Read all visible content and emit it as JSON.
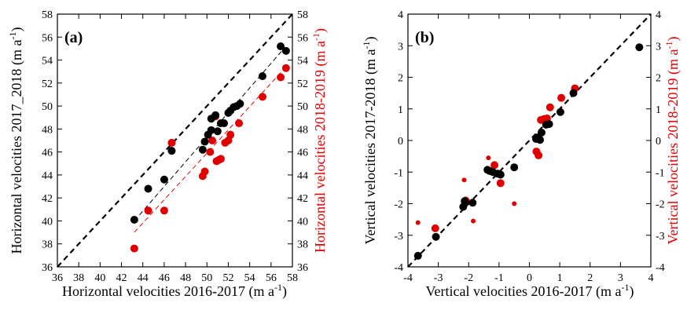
{
  "chart_data": [
    {
      "type": "scatter",
      "panel_label": "(a)",
      "xlabel": "Horizontal velocities 2016-2017 (m a",
      "xlabel_sup": "-1",
      "xlabel_tail": ")",
      "ylabel": "Horizontal velocities 2017_2018 (m a",
      "ylabel_sup": "-1",
      "ylabel_tail": ")",
      "ylabel_right": "Horizontal velocities 2018-2019 (m a",
      "ylabel_right_sup": "-1",
      "ylabel_right_tail": ")",
      "xlim": [
        36,
        58
      ],
      "ylim": [
        36,
        58
      ],
      "xticks": [
        "36",
        "38",
        "40",
        "42",
        "44",
        "46",
        "48",
        "50",
        "52",
        "54",
        "56",
        "58"
      ],
      "yticks": [
        "36",
        "38",
        "40",
        "42",
        "44",
        "46",
        "48",
        "50",
        "52",
        "54",
        "56",
        "58"
      ],
      "colors": {
        "series_2017_2018": "#000000",
        "series_2018_2019": "#e00000",
        "identity": "#000000"
      },
      "identity_line": [
        [
          36,
          36
        ],
        [
          58,
          58
        ]
      ],
      "fit_lines": [
        {
          "color": "#000000",
          "points": [
            [
              43.2,
              40.0
            ],
            [
              57.2,
              55.0
            ]
          ]
        },
        {
          "color": "#e00000",
          "points": [
            [
              43.2,
              39.0
            ],
            [
              57.2,
              53.2
            ]
          ]
        }
      ],
      "series": [
        {
          "color": "#000000",
          "x": [
            43.2,
            44.5,
            46.0,
            46.7,
            49.6,
            49.8,
            50.1,
            50.4,
            50.4,
            50.8,
            51.0,
            51.3,
            51.6,
            52.0,
            52.2,
            52.5,
            52.8,
            53.1,
            55.2,
            56.9,
            57.4
          ],
          "y": [
            40.1,
            42.8,
            43.6,
            46.1,
            46.2,
            46.9,
            47.5,
            47.9,
            48.9,
            49.2,
            47.8,
            48.5,
            48.5,
            49.4,
            49.6,
            49.9,
            50.0,
            50.2,
            52.6,
            55.2,
            54.8
          ]
        },
        {
          "color": "#e00000",
          "x": [
            43.2,
            44.5,
            46.0,
            46.7,
            49.6,
            49.8,
            50.3,
            50.5,
            50.8,
            50.9,
            51.1,
            51.3,
            51.7,
            52.0,
            52.2,
            53.0,
            55.2,
            56.9,
            57.4
          ],
          "y": [
            37.6,
            40.9,
            40.9,
            46.8,
            43.9,
            44.3,
            46.0,
            47.0,
            49.1,
            45.2,
            45.3,
            45.4,
            46.8,
            47.0,
            47.5,
            48.5,
            50.8,
            52.5,
            53.3
          ]
        }
      ]
    },
    {
      "type": "scatter",
      "panel_label": "(b)",
      "xlabel": "Vertical velocities 2016-2017 (m a",
      "xlabel_sup": "-1",
      "xlabel_tail": ")",
      "ylabel": "Vertical velocities 2017-2018 (m a",
      "ylabel_sup": "-1",
      "ylabel_tail": ")",
      "ylabel_right": "Vertical velocities 2018-2019 (m a",
      "ylabel_right_sup": "-1",
      "ylabel_right_tail": ")",
      "xlim": [
        -4,
        4
      ],
      "ylim": [
        -4,
        4
      ],
      "xticks": [
        "-4",
        "-3",
        "-2",
        "-1",
        "0",
        "1",
        "2",
        "3",
        "4"
      ],
      "yticks": [
        "-4",
        "-3",
        "-2",
        "-1",
        "0",
        "1",
        "2",
        "3",
        "4"
      ],
      "colors": {
        "series_2017_2018": "#000000",
        "series_2018_2019": "#e00000",
        "identity": "#000000"
      },
      "identity_line": [
        [
          -4,
          -4
        ],
        [
          4,
          4
        ]
      ],
      "series": [
        {
          "color": "#000000",
          "x": [
            -3.67,
            -3.08,
            -2.18,
            -2.13,
            -1.87,
            -1.38,
            -1.3,
            -1.2,
            -1.05,
            -0.95,
            -0.5,
            0.22,
            0.28,
            0.35,
            0.4,
            0.55,
            0.65,
            1.02,
            1.45,
            3.62
          ],
          "y": [
            -3.65,
            -3.05,
            -2.1,
            -1.92,
            -1.97,
            -0.93,
            -0.97,
            -1.0,
            -1.05,
            -1.08,
            -0.85,
            0.05,
            0.1,
            0.02,
            0.25,
            0.5,
            0.52,
            0.9,
            1.5,
            2.95
          ],
          "r": [
            5,
            5,
            5,
            5,
            5,
            5,
            5,
            5,
            5,
            5,
            5,
            5,
            5,
            5,
            5,
            5,
            5,
            5,
            5,
            5
          ]
        },
        {
          "color": "#e00000",
          "x": [
            -3.67,
            -3.1,
            -2.15,
            -2.1,
            -1.85,
            -1.35,
            -1.15,
            -0.95,
            -0.5,
            0.23,
            0.3,
            0.38,
            0.48,
            0.58,
            0.68,
            1.05,
            1.5
          ],
          "y": [
            -2.6,
            -2.78,
            -1.25,
            -1.9,
            -2.55,
            -0.55,
            -0.78,
            -1.35,
            -2.0,
            -0.35,
            -0.47,
            0.65,
            0.68,
            0.7,
            1.05,
            1.35,
            1.65
          ],
          "r": [
            3,
            5,
            3,
            5,
            3,
            3,
            5,
            5,
            3,
            5,
            5,
            5,
            5,
            5,
            5,
            5,
            5
          ]
        }
      ]
    }
  ]
}
